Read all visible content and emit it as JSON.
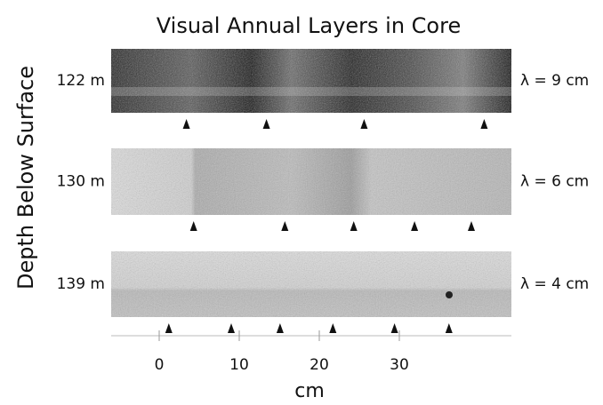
{
  "title": "Visual Annual Layers in Core",
  "y_label": "Depth Below Surface",
  "x_label": "cm",
  "xlim": [
    -6,
    44
  ],
  "xticks": [
    0,
    10,
    20,
    30
  ],
  "panels": [
    {
      "depth": "122 m",
      "wavelength": "λ = 9 cm",
      "arrows": [
        3.4,
        13.4,
        25.6,
        40.6
      ]
    },
    {
      "depth": "130 m",
      "wavelength": "λ = 6 cm",
      "arrows": [
        4.3,
        15.7,
        24.3,
        31.9,
        39.0
      ]
    },
    {
      "depth": "139 m",
      "wavelength": "λ = 4 cm",
      "arrows": [
        1.2,
        9.0,
        15.1,
        21.7,
        29.4,
        36.2
      ]
    }
  ]
}
